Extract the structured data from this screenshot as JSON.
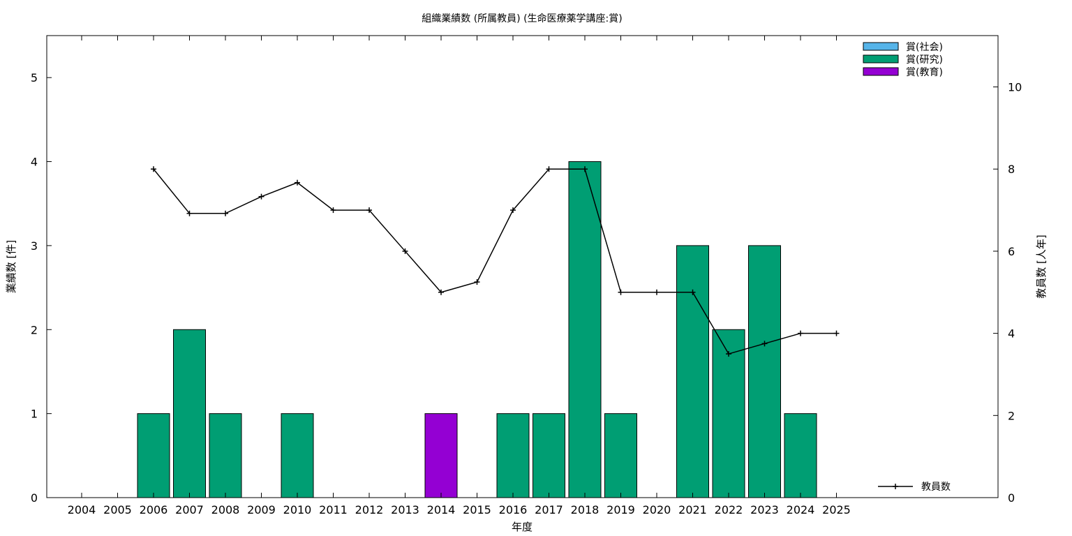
{
  "chart_data": {
    "type": "bar",
    "title": "組織業績数 (所属教員) (生命医療薬学講座:賞)",
    "xlabel": "年度",
    "ylabel": "業績数 [件]",
    "y2label": "教員数 [人年]",
    "categories": [
      "2004",
      "2005",
      "2006",
      "2007",
      "2008",
      "2009",
      "2010",
      "2011",
      "2012",
      "2013",
      "2014",
      "2015",
      "2016",
      "2017",
      "2018",
      "2019",
      "2020",
      "2021",
      "2022",
      "2023",
      "2024",
      "2025"
    ],
    "ylim": [
      0,
      5.5
    ],
    "y_ticks": [
      0,
      1,
      2,
      3,
      4,
      5
    ],
    "y2lim": [
      0,
      11.25
    ],
    "y2_ticks": [
      0,
      2,
      4,
      6,
      8,
      10
    ],
    "legend_position": "top-right",
    "grid": false,
    "series": [
      {
        "name": "賞(社会)",
        "kind": "bar",
        "color": "#56b4e9",
        "values": [
          0,
          0,
          0,
          0,
          0,
          0,
          0,
          0,
          0,
          0,
          0,
          0,
          0,
          0,
          0,
          0,
          0,
          0,
          0,
          0,
          0,
          0
        ]
      },
      {
        "name": "賞(研究)",
        "kind": "bar",
        "color": "#009e73",
        "values": [
          0,
          0,
          1,
          2,
          1,
          0,
          1,
          0,
          0,
          0,
          0,
          0,
          1,
          1,
          4,
          1,
          0,
          3,
          2,
          3,
          1,
          0
        ]
      },
      {
        "name": "賞(教育)",
        "kind": "bar",
        "color": "#9400d3",
        "values": [
          0,
          0,
          0,
          0,
          0,
          0,
          0,
          0,
          0,
          0,
          1,
          0,
          0,
          0,
          0,
          0,
          0,
          0,
          0,
          0,
          0,
          0
        ]
      },
      {
        "name": "教員数",
        "kind": "line",
        "axis": "y2",
        "color": "#000000",
        "legend_position": "bottom-right",
        "values": [
          null,
          null,
          8,
          6.92,
          6.92,
          7.33,
          7.67,
          7,
          7,
          6,
          5,
          5.25,
          7,
          8,
          8,
          5,
          5,
          5,
          3.5,
          3.75,
          4,
          4
        ]
      }
    ]
  }
}
